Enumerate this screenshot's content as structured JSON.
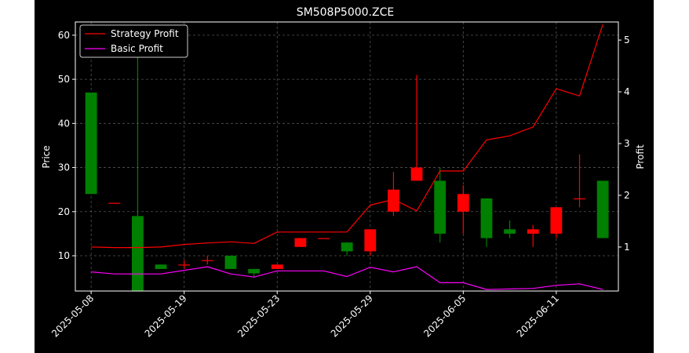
{
  "chart_data": {
    "type": "candlestick",
    "title": "SM508P5000.ZCE",
    "xlabel": "",
    "ylabel": "Price",
    "y2label": "Profit",
    "ylim": [
      2,
      63
    ],
    "y2lim": [
      0.15,
      5.35
    ],
    "yticks": [
      10,
      20,
      30,
      40,
      50,
      60
    ],
    "y2ticks": [
      1,
      2,
      3,
      4,
      5
    ],
    "xticks": [
      "2025-05-08",
      "2025-05-19",
      "2025-05-23",
      "2025-05-29",
      "2025-06-05",
      "2025-06-11"
    ],
    "xtick_index": [
      0,
      4,
      8,
      12,
      16,
      20
    ],
    "grid": true,
    "legend_position": "top-left",
    "candles": [
      {
        "i": 0,
        "open": 47,
        "close": 24,
        "high": 47,
        "low": 24
      },
      {
        "i": 1,
        "open": 22,
        "close": 22,
        "high": 22,
        "low": 22
      },
      {
        "i": 2,
        "open": 19,
        "close": 2,
        "high": 62,
        "low": 2
      },
      {
        "i": 3,
        "open": 8,
        "close": 7,
        "high": 8,
        "low": 7
      },
      {
        "i": 4,
        "open": 8,
        "close": 8,
        "high": 9,
        "low": 7
      },
      {
        "i": 5,
        "open": 9,
        "close": 9,
        "high": 10,
        "low": 8
      },
      {
        "i": 6,
        "open": 10,
        "close": 7,
        "high": 10,
        "low": 7
      },
      {
        "i": 7,
        "open": 7,
        "close": 6,
        "high": 7,
        "low": 5
      },
      {
        "i": 8,
        "open": 7,
        "close": 8,
        "high": 8,
        "low": 7
      },
      {
        "i": 9,
        "open": 12,
        "close": 14,
        "high": 14,
        "low": 12
      },
      {
        "i": 10,
        "open": 14,
        "close": 14,
        "high": 14,
        "low": 14
      },
      {
        "i": 11,
        "open": 13,
        "close": 11,
        "high": 13,
        "low": 10
      },
      {
        "i": 12,
        "open": 11,
        "close": 16,
        "high": 16,
        "low": 10
      },
      {
        "i": 13,
        "open": 20,
        "close": 25,
        "high": 29,
        "low": 19
      },
      {
        "i": 14,
        "open": 27,
        "close": 30,
        "high": 51,
        "low": 27
      },
      {
        "i": 15,
        "open": 27,
        "close": 15,
        "high": 30,
        "low": 13
      },
      {
        "i": 16,
        "open": 20,
        "close": 24,
        "high": 26,
        "low": 15
      },
      {
        "i": 17,
        "open": 23,
        "close": 14,
        "high": 23,
        "low": 12
      },
      {
        "i": 18,
        "open": 16,
        "close": 15,
        "high": 18,
        "low": 14
      },
      {
        "i": 19,
        "open": 15,
        "close": 16,
        "high": 17,
        "low": 12
      },
      {
        "i": 20,
        "open": 15,
        "close": 21,
        "high": 21,
        "low": 14
      },
      {
        "i": 21,
        "open": 23,
        "close": 23,
        "high": 33,
        "low": 21
      },
      {
        "i": 22,
        "open": 27,
        "close": 14,
        "high": 27,
        "low": 14
      }
    ],
    "series": [
      {
        "name": "Strategy Profit",
        "color": "#ff0000",
        "axis": "right",
        "values": [
          1.0,
          0.99,
          0.99,
          1.0,
          1.05,
          1.08,
          1.1,
          1.07,
          1.29,
          1.29,
          1.29,
          1.29,
          1.81,
          1.92,
          1.7,
          2.47,
          2.47,
          3.07,
          3.15,
          3.32,
          4.06,
          3.92,
          5.3
        ]
      },
      {
        "name": "Basic Profit",
        "color": "#ff00ff",
        "axis": "right",
        "values": [
          0.52,
          0.48,
          0.48,
          0.48,
          0.55,
          0.62,
          0.48,
          0.42,
          0.54,
          0.54,
          0.54,
          0.43,
          0.61,
          0.52,
          0.62,
          0.31,
          0.31,
          0.18,
          0.19,
          0.2,
          0.26,
          0.29,
          0.18
        ]
      }
    ],
    "up_color": "#ff0000",
    "down_color": "#008000"
  }
}
